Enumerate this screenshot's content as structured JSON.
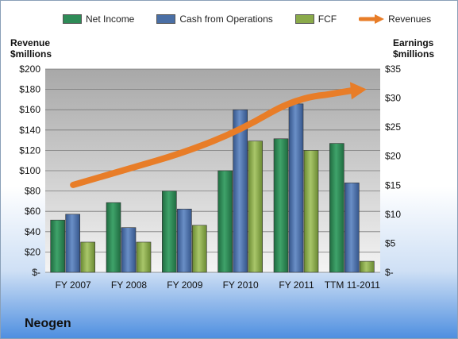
{
  "company": "Neogen",
  "colors": {
    "net_income": "#2e8b57",
    "cash_ops": "#4a6fa5",
    "fcf": "#8aaa4a",
    "revenues": "#e87d28"
  },
  "chart_data": {
    "type": "bar",
    "categories": [
      "FY 2007",
      "FY 2008",
      "FY 2009",
      "FY 2010",
      "FY 2011",
      "TTM 11-2011"
    ],
    "series": [
      {
        "name": "Net Income",
        "axis": "right",
        "values": [
          9,
          12,
          14,
          17.5,
          23,
          22.2
        ]
      },
      {
        "name": "Cash from Operations",
        "axis": "right",
        "values": [
          10,
          7.7,
          10.9,
          28,
          29,
          15.4
        ]
      },
      {
        "name": "FCF",
        "axis": "right",
        "values": [
          5.2,
          5.2,
          8.1,
          22.6,
          21,
          1.9
        ]
      },
      {
        "name": "Revenues",
        "axis": "left",
        "type": "line",
        "values": [
          86,
          102,
          118,
          140,
          172,
          177
        ]
      }
    ],
    "left_axis": {
      "title": [
        "Revenue",
        "$millions"
      ],
      "ylim": [
        0,
        200
      ],
      "ticks": [
        "$-",
        "$20",
        "$40",
        "$60",
        "$80",
        "$100",
        "$120",
        "$140",
        "$160",
        "$180",
        "$200"
      ]
    },
    "right_axis": {
      "title": [
        "Earnings",
        "$millions"
      ],
      "ylim": [
        0,
        35
      ],
      "ticks": [
        "$-",
        "$5",
        "$10",
        "$15",
        "$20",
        "$25",
        "$30",
        "$35"
      ]
    },
    "legend": "top",
    "grid": true
  }
}
